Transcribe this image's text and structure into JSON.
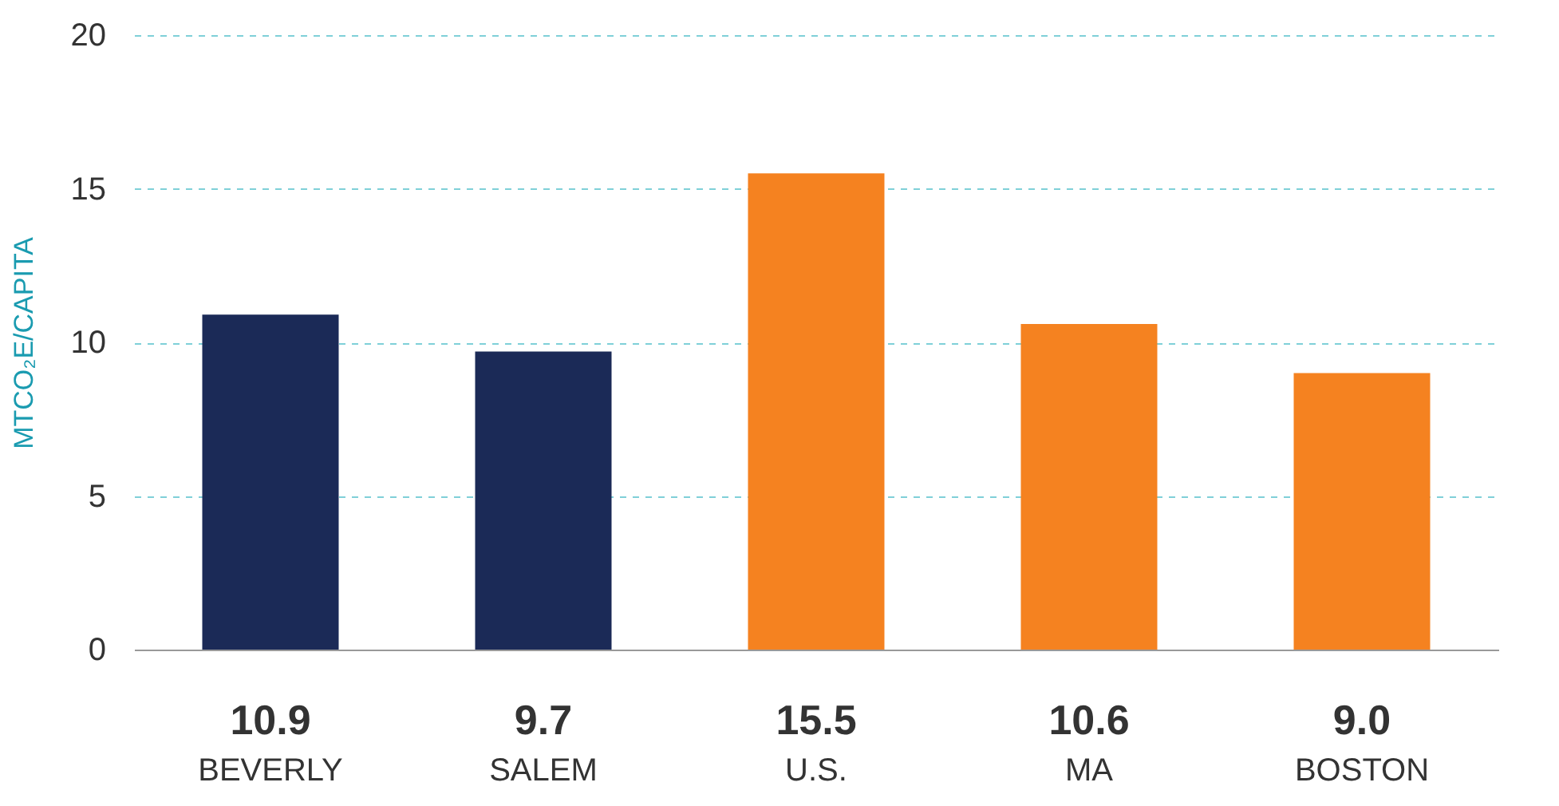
{
  "chart_data": {
    "type": "bar",
    "ylabel": "MTCO₂E/CAPITA",
    "categories": [
      "BEVERLY",
      "SALEM",
      "U.S.",
      "MA",
      "BOSTON"
    ],
    "values": [
      10.9,
      9.7,
      15.5,
      10.6,
      9.0
    ],
    "colors": [
      "#1b2a57",
      "#1b2a57",
      "#f58220",
      "#f58220",
      "#f58220"
    ],
    "value_labels": [
      "10.9",
      "9.7",
      "15.5",
      "10.6",
      "9.0"
    ],
    "ylim": [
      0,
      20
    ],
    "yticks": [
      0,
      5,
      10,
      15,
      20
    ],
    "grid": "y"
  }
}
